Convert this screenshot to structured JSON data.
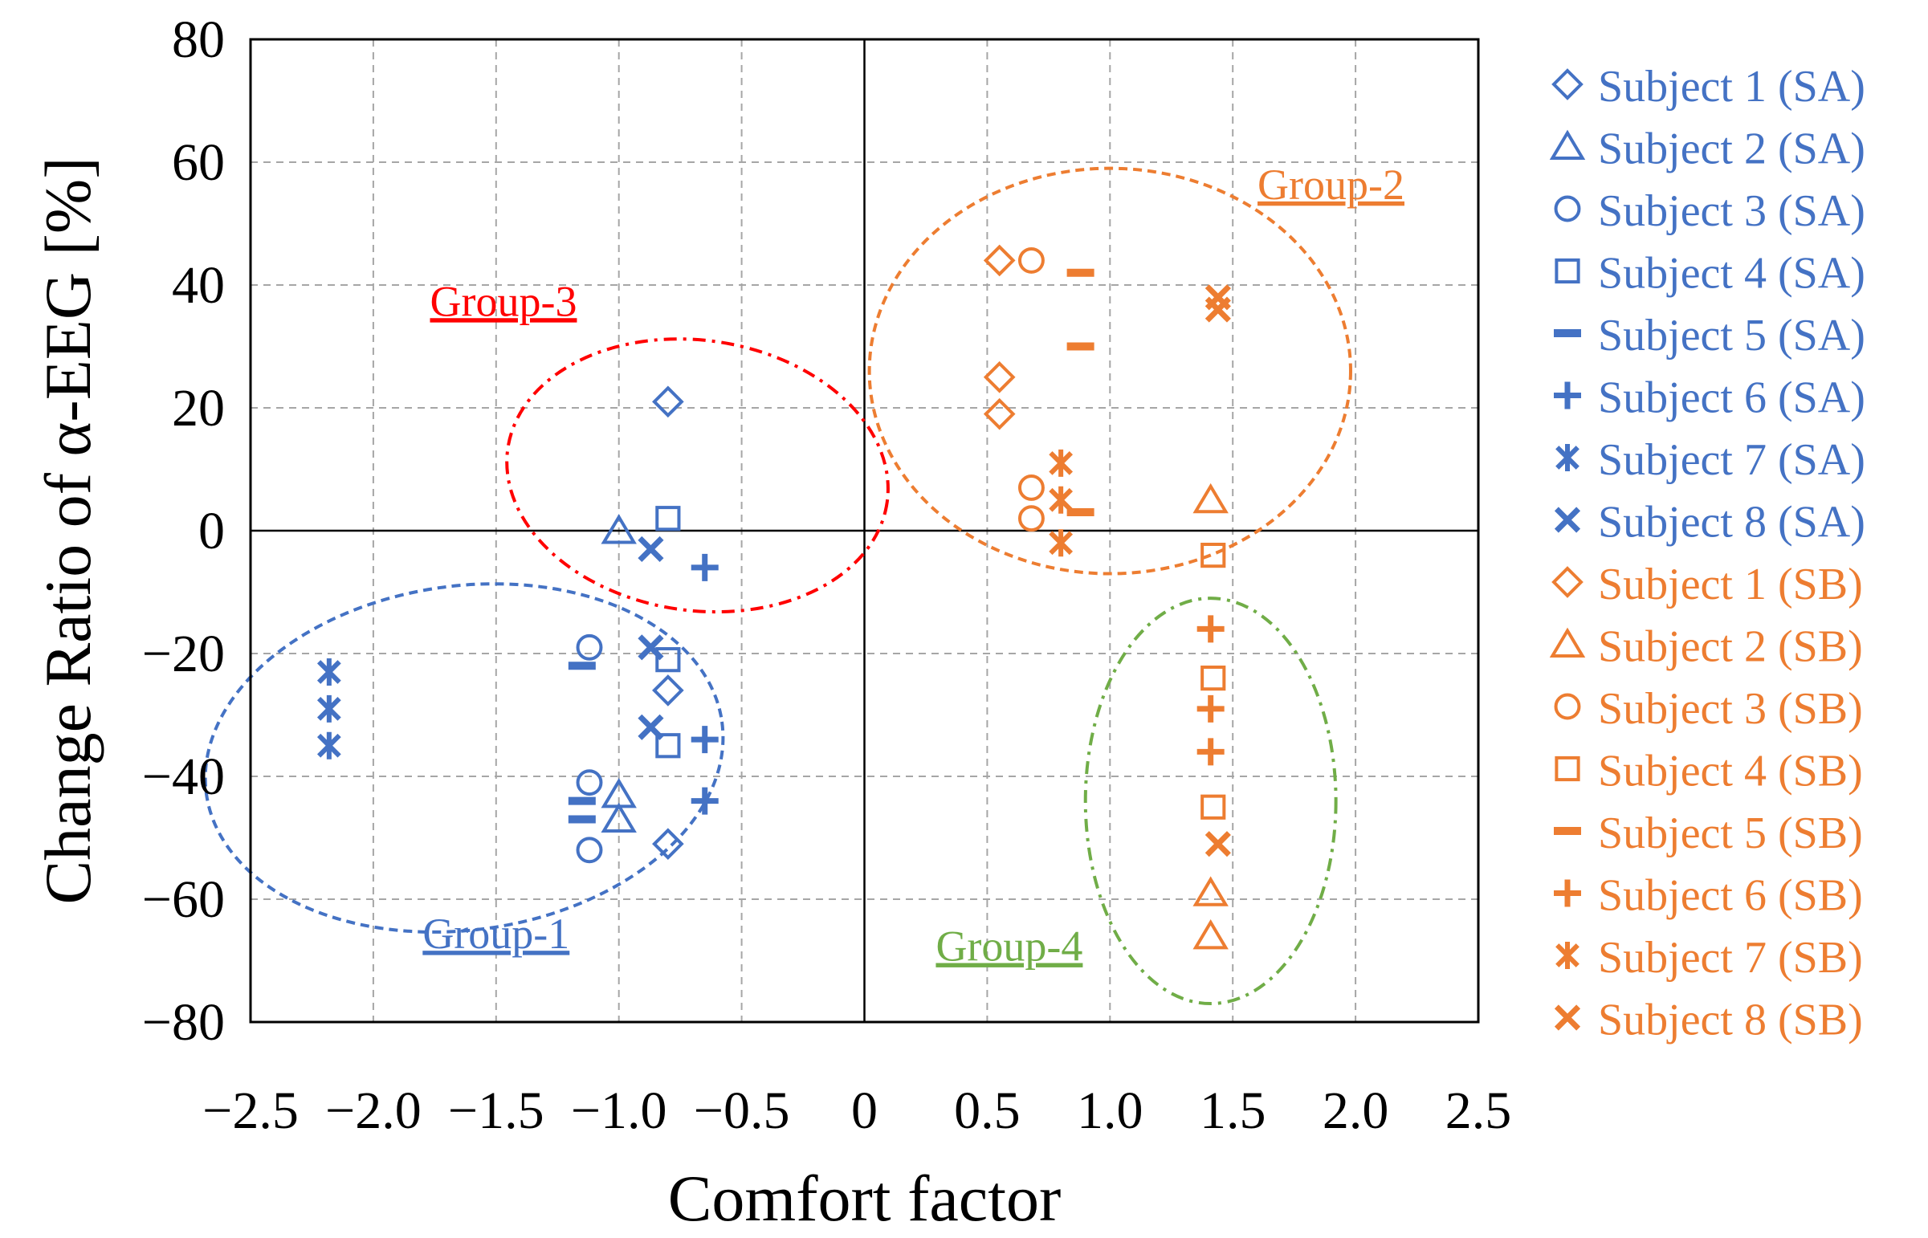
{
  "chart_data": {
    "type": "scatter",
    "title": "",
    "xlabel": "Comfort factor",
    "ylabel": "Change Ratio of α-EEG [%]",
    "xlim": [
      -2.5,
      2.5
    ],
    "ylim": [
      -80,
      80
    ],
    "x_ticks": [
      -2.5,
      -2.0,
      -1.5,
      -1.0,
      -0.5,
      0,
      0.5,
      1.0,
      1.5,
      2.0,
      2.5
    ],
    "x_tick_labels": [
      "−2.5",
      "−2.0",
      "−1.5",
      "−1.0",
      "−0.5",
      "0",
      "0.5",
      "1.0",
      "1.5",
      "2.0",
      "2.5"
    ],
    "y_ticks": [
      -80,
      -60,
      -40,
      -20,
      0,
      20,
      40,
      60,
      80
    ],
    "y_tick_labels": [
      "−80",
      "−60",
      "−40",
      "−20",
      "0",
      "20",
      "40",
      "60",
      "80"
    ],
    "grid": true,
    "legend_position": "right",
    "colors": {
      "SA": "#4472C4",
      "SB": "#ED7D31",
      "group3": "#FF0000",
      "group4": "#70AD47"
    },
    "series": [
      {
        "name": "Subject 1 (SA)",
        "marker": "diamond",
        "color": "#4472C4",
        "points": [
          [
            -0.8,
            21
          ],
          [
            -0.8,
            -26
          ],
          [
            -0.8,
            -51
          ]
        ]
      },
      {
        "name": "Subject 2 (SA)",
        "marker": "triangle",
        "color": "#4472C4",
        "points": [
          [
            -1.0,
            0
          ],
          [
            -1.0,
            -43
          ],
          [
            -1.0,
            -47
          ]
        ]
      },
      {
        "name": "Subject 3 (SA)",
        "marker": "circle",
        "color": "#4472C4",
        "points": [
          [
            -1.12,
            -19
          ],
          [
            -1.12,
            -41
          ],
          [
            -1.12,
            -52
          ]
        ]
      },
      {
        "name": "Subject 4 (SA)",
        "marker": "square",
        "color": "#4472C4",
        "points": [
          [
            -0.8,
            2
          ],
          [
            -0.8,
            -21
          ],
          [
            -0.8,
            -35
          ]
        ]
      },
      {
        "name": "Subject 5 (SA)",
        "marker": "dash",
        "color": "#4472C4",
        "points": [
          [
            -1.15,
            -22
          ],
          [
            -1.15,
            -44
          ],
          [
            -1.15,
            -47
          ]
        ]
      },
      {
        "name": "Subject 6 (SA)",
        "marker": "plus",
        "color": "#4472C4",
        "points": [
          [
            -0.65,
            -6
          ],
          [
            -0.65,
            -34
          ],
          [
            -0.65,
            -44
          ]
        ]
      },
      {
        "name": "Subject 7 (SA)",
        "marker": "asterisk",
        "color": "#4472C4",
        "points": [
          [
            -2.18,
            -23
          ],
          [
            -2.18,
            -29
          ],
          [
            -2.18,
            -35
          ]
        ]
      },
      {
        "name": "Subject 8 (SA)",
        "marker": "x",
        "color": "#4472C4",
        "points": [
          [
            -0.87,
            -3
          ],
          [
            -0.87,
            -19
          ],
          [
            -0.87,
            -32
          ]
        ]
      },
      {
        "name": "Subject 1 (SB)",
        "marker": "diamond",
        "color": "#ED7D31",
        "points": [
          [
            0.55,
            44
          ],
          [
            0.55,
            25
          ],
          [
            0.55,
            19
          ]
        ]
      },
      {
        "name": "Subject 2 (SB)",
        "marker": "triangle",
        "color": "#ED7D31",
        "points": [
          [
            1.41,
            5
          ],
          [
            1.41,
            -59
          ],
          [
            1.41,
            -66
          ]
        ]
      },
      {
        "name": "Subject 3 (SB)",
        "marker": "circle",
        "color": "#ED7D31",
        "points": [
          [
            0.68,
            44
          ],
          [
            0.68,
            7
          ],
          [
            0.68,
            2
          ]
        ]
      },
      {
        "name": "Subject 4 (SB)",
        "marker": "square",
        "color": "#ED7D31",
        "points": [
          [
            1.42,
            -4
          ],
          [
            1.42,
            -24
          ],
          [
            1.42,
            -45
          ]
        ]
      },
      {
        "name": "Subject 5 (SB)",
        "marker": "dash",
        "color": "#ED7D31",
        "points": [
          [
            0.88,
            42
          ],
          [
            0.88,
            30
          ],
          [
            0.88,
            3
          ]
        ]
      },
      {
        "name": "Subject 6 (SB)",
        "marker": "plus",
        "color": "#ED7D31",
        "points": [
          [
            1.41,
            -16
          ],
          [
            1.41,
            -29
          ],
          [
            1.41,
            -36
          ]
        ]
      },
      {
        "name": "Subject 7 (SB)",
        "marker": "asterisk",
        "color": "#ED7D31",
        "points": [
          [
            0.8,
            11
          ],
          [
            0.8,
            5
          ],
          [
            0.8,
            -2
          ]
        ]
      },
      {
        "name": "Subject 8 (SB)",
        "marker": "x",
        "color": "#ED7D31",
        "points": [
          [
            1.44,
            38
          ],
          [
            1.44,
            36
          ],
          [
            1.44,
            -51
          ]
        ]
      }
    ],
    "annotations": [
      {
        "text": "Group-1",
        "color": "#4472C4",
        "ellipse": {
          "cx": -1.63,
          "cy": -37,
          "rx": 1.06,
          "ry": 28,
          "rotation_deg": -8
        },
        "style": "dashed"
      },
      {
        "text": "Group-2",
        "color": "#ED7D31",
        "ellipse": {
          "cx": 1.0,
          "cy": 26,
          "rx": 0.98,
          "ry": 33,
          "rotation_deg": 0
        },
        "style": "dashed"
      },
      {
        "text": "Group-3",
        "color": "#FF0000",
        "ellipse": {
          "cx": -0.68,
          "cy": 9,
          "rx": 0.78,
          "ry": 22,
          "rotation_deg": 8
        },
        "style": "dash-dot"
      },
      {
        "text": "Group-4",
        "color": "#70AD47",
        "ellipse": {
          "cx": 1.41,
          "cy": -44,
          "rx": 0.51,
          "ry": 33,
          "rotation_deg": 0
        },
        "style": "dash-dot"
      }
    ]
  }
}
